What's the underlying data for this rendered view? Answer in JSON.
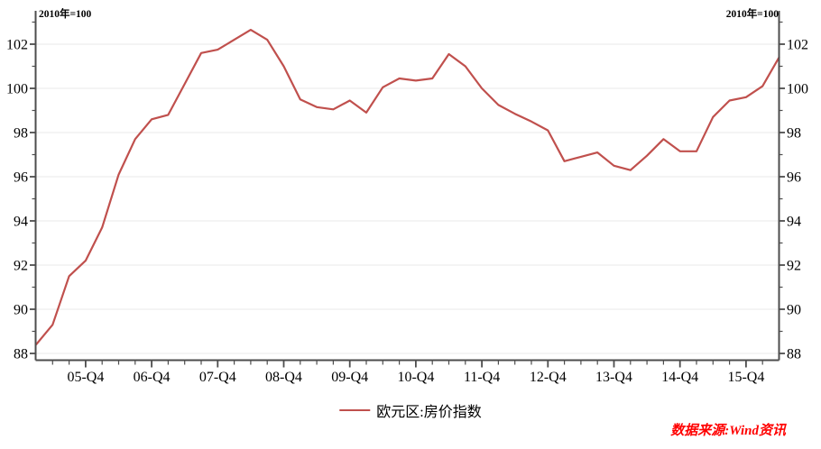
{
  "header": {
    "left_axis_note": "2010年=100",
    "right_axis_note": "2010年=100"
  },
  "legend": {
    "label": "欧元区:房价指数"
  },
  "source": {
    "label": "数据来源:Wind资讯"
  },
  "colors": {
    "line": "#c0504d",
    "source_text": "#ff0000",
    "axis": "#4d4d4d",
    "grid": "#e9e9e9",
    "text": "#000000"
  },
  "chart_data": {
    "type": "line",
    "title": "",
    "series_name": "欧元区:房价指数",
    "unit_note": "2010年=100",
    "x": [
      "05-Q1",
      "05-Q2",
      "05-Q3",
      "05-Q4",
      "06-Q1",
      "06-Q2",
      "06-Q3",
      "06-Q4",
      "07-Q1",
      "07-Q2",
      "07-Q3",
      "07-Q4",
      "08-Q1",
      "08-Q2",
      "08-Q3",
      "08-Q4",
      "09-Q1",
      "09-Q2",
      "09-Q3",
      "09-Q4",
      "10-Q1",
      "10-Q2",
      "10-Q3",
      "10-Q4",
      "11-Q1",
      "11-Q2",
      "11-Q3",
      "11-Q4",
      "12-Q1",
      "12-Q2",
      "12-Q3",
      "12-Q4",
      "13-Q1",
      "13-Q2",
      "13-Q3",
      "13-Q4",
      "14-Q1",
      "14-Q2",
      "14-Q3",
      "14-Q4",
      "15-Q1",
      "15-Q2",
      "15-Q3",
      "15-Q4",
      "16-Q1",
      "16-Q2"
    ],
    "values": [
      88.4,
      89.3,
      91.5,
      92.2,
      93.7,
      96.1,
      97.7,
      98.6,
      98.8,
      100.2,
      101.6,
      101.75,
      102.2,
      102.65,
      102.2,
      101.0,
      99.5,
      99.15,
      99.05,
      99.45,
      98.9,
      100.05,
      100.45,
      100.35,
      100.45,
      101.55,
      101.0,
      100.0,
      99.25,
      98.85,
      98.5,
      98.1,
      96.7,
      96.9,
      97.1,
      96.5,
      96.3,
      96.95,
      97.7,
      97.15,
      97.15,
      98.7,
      99.45,
      99.6,
      100.1,
      101.4
    ],
    "x_tick_labels": [
      "05-Q4",
      "06-Q4",
      "07-Q4",
      "08-Q4",
      "09-Q4",
      "10-Q4",
      "11-Q4",
      "12-Q4",
      "13-Q4",
      "14-Q4",
      "15-Q4"
    ],
    "y_ticks": [
      88,
      90,
      92,
      94,
      96,
      98,
      100,
      102
    ],
    "ylim": [
      87.7,
      103.5
    ],
    "grid": "horizontal-major-only",
    "legend_position": "bottom-center",
    "y_axis_sides": "both"
  }
}
